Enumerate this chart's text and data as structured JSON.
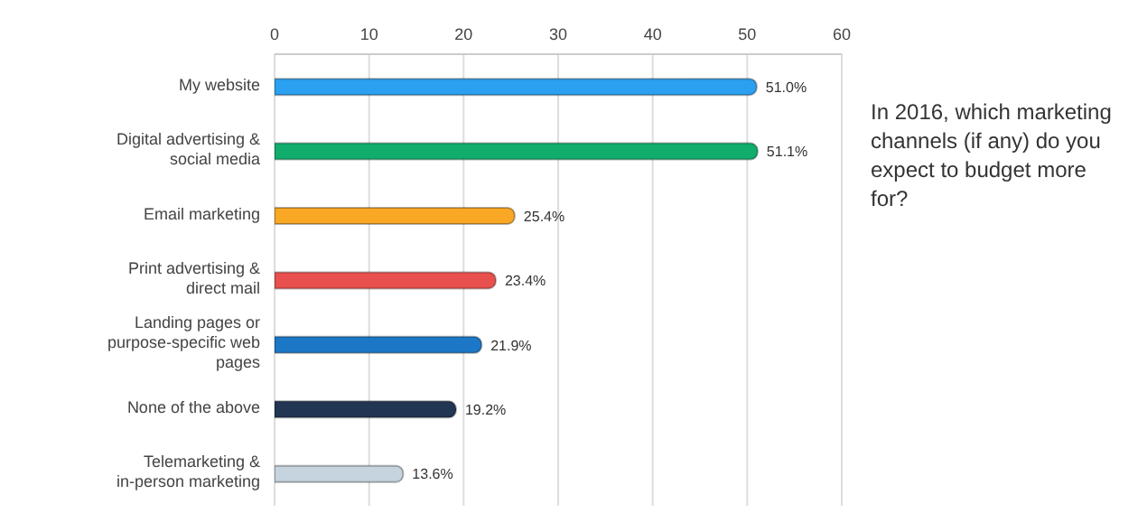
{
  "chart_data": {
    "type": "bar",
    "orientation": "horizontal",
    "title": "In 2016, which marketing channels (if any) do you expect to budget more for?",
    "categories": [
      "My website",
      "Digital advertising & social media",
      "Email marketing",
      "Print advertising & direct mail",
      "Landing pages or purpose-specific web pages",
      "None of the above",
      "Telemarketing & in-person marketing"
    ],
    "values": [
      51.0,
      51.1,
      25.4,
      23.4,
      21.9,
      19.2,
      13.6
    ],
    "colors": [
      "#2b9ff0",
      "#10ad6c",
      "#f8a825",
      "#e8504d",
      "#1c78c6",
      "#223654",
      "#c5d4de"
    ],
    "value_labels": [
      "51.0%",
      "51.1%",
      "25.4%",
      "23.4%",
      "21.9%",
      "19.2%",
      "13.6%"
    ],
    "xlim": [
      0,
      60
    ],
    "xticks": [
      0,
      10,
      20,
      30,
      40,
      50,
      60
    ],
    "grid": "x"
  }
}
